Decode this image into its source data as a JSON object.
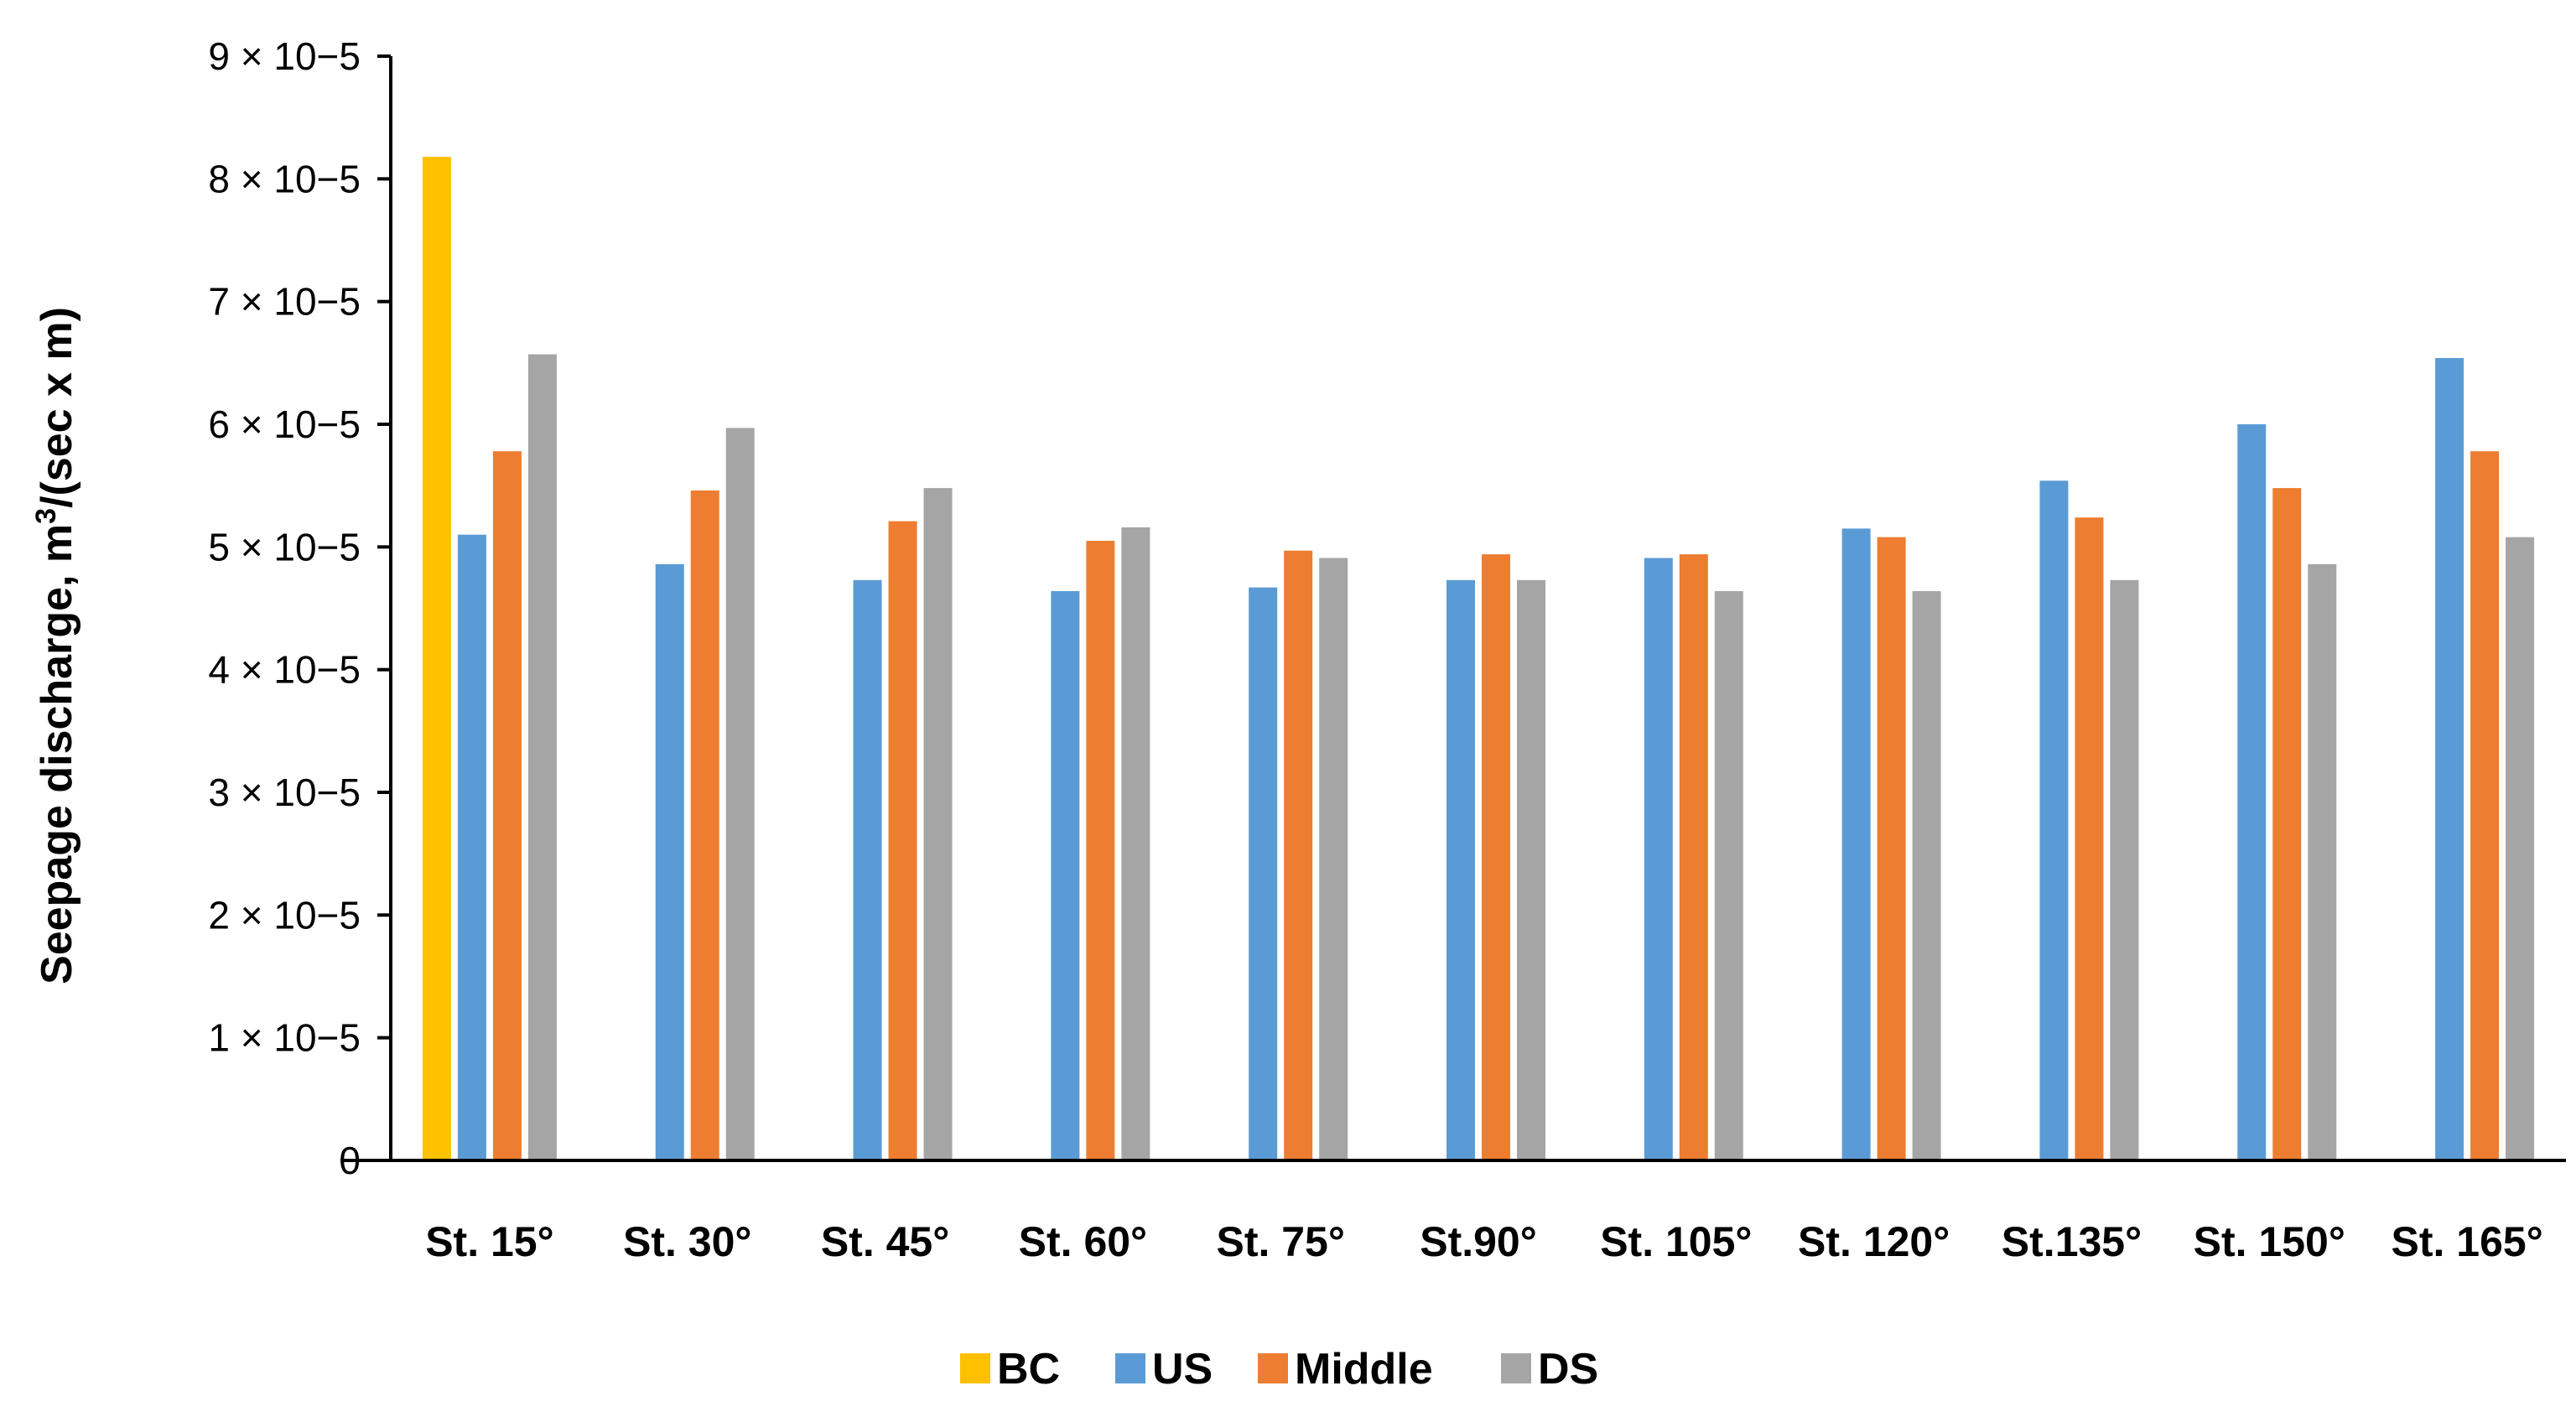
{
  "chart_data": {
    "type": "bar",
    "title": "",
    "ylabel_parts": [
      "Seepage discharge, m",
      "3",
      "/(sec x m)"
    ],
    "xlabel": "",
    "ylim": [
      0,
      9e-05
    ],
    "yticks": [
      {
        "value": 0,
        "label": "0"
      },
      {
        "value": 1e-05,
        "label": "1 × 10−5"
      },
      {
        "value": 2e-05,
        "label": "2 × 10−5"
      },
      {
        "value": 3e-05,
        "label": "3 × 10−5"
      },
      {
        "value": 4e-05,
        "label": "4 × 10−5"
      },
      {
        "value": 5e-05,
        "label": "5 × 10−5"
      },
      {
        "value": 6e-05,
        "label": "6 × 10−5"
      },
      {
        "value": 7e-05,
        "label": "7 × 10−5"
      },
      {
        "value": 8e-05,
        "label": "8 × 10−5"
      },
      {
        "value": 9e-05,
        "label": "9 × 10−5"
      }
    ],
    "categories": [
      "St. 15°",
      "St. 30°",
      "St. 45°",
      "St. 60°",
      "St. 75°",
      "St.90°",
      "St. 105°",
      "St. 120°",
      "St.135°",
      "St. 150°",
      "St. 165°"
    ],
    "series": [
      {
        "name": "BC",
        "color": "#FFC000",
        "values": [
          8.18e-05,
          null,
          null,
          null,
          null,
          null,
          null,
          null,
          null,
          null,
          null
        ]
      },
      {
        "name": "US",
        "color": "#5B9BD5",
        "values": [
          5.1e-05,
          4.86e-05,
          4.73e-05,
          4.64e-05,
          4.67e-05,
          4.73e-05,
          4.91e-05,
          5.15e-05,
          5.54e-05,
          6e-05,
          6.54e-05
        ]
      },
      {
        "name": "Middle",
        "color": "#ED7D31",
        "values": [
          5.78e-05,
          5.46e-05,
          5.21e-05,
          5.05e-05,
          4.97e-05,
          4.94e-05,
          4.94e-05,
          5.08e-05,
          5.24e-05,
          5.48e-05,
          5.78e-05
        ]
      },
      {
        "name": "DS",
        "color": "#A5A5A5",
        "values": [
          6.57e-05,
          5.97e-05,
          5.48e-05,
          5.16e-05,
          4.91e-05,
          4.73e-05,
          4.64e-05,
          4.64e-05,
          4.73e-05,
          4.86e-05,
          5.08e-05
        ]
      }
    ],
    "grid": false,
    "legend_position": "bottom"
  }
}
